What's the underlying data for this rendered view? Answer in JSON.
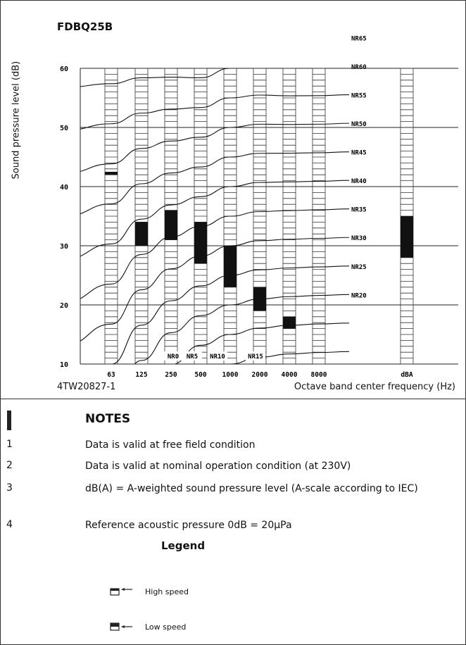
{
  "model": "FDBQ25B",
  "drawing_code": "4TW20827-1",
  "chart_data": {
    "type": "bar",
    "ylabel": "Sound pressure level (dB)",
    "xlabel": "Octave band center frequency (Hz)",
    "ylim": [
      10,
      60
    ],
    "yticks": [
      "10",
      "20",
      "30",
      "40",
      "50",
      "60"
    ],
    "categories": [
      "63",
      "125",
      "250",
      "500",
      "1000",
      "2000",
      "4000",
      "8000",
      "dBA"
    ],
    "series": [
      {
        "name": "High speed",
        "values": [
          42.5,
          34,
          36,
          34,
          30,
          23,
          18,
          null,
          35
        ]
      },
      {
        "name": "Low speed",
        "values": [
          42,
          30,
          31,
          27,
          23,
          19,
          16,
          null,
          28
        ]
      }
    ],
    "nr_curves": [
      "NR65",
      "NR60",
      "NR55",
      "NR50",
      "NR45",
      "NR40",
      "NR35",
      "NR30",
      "NR25",
      "NR20",
      "NR15",
      "NR10",
      "NR5",
      "NR0"
    ]
  },
  "notes": {
    "title": "NOTES",
    "items": [
      {
        "num": "1",
        "text": "Data is valid at free field condition"
      },
      {
        "num": "2",
        "text": "Data is valid at nominal operation condition (at 230V)"
      },
      {
        "num": "3",
        "text": "dB(A) = A-weighted sound pressure level (A-scale according to IEC)"
      },
      {
        "num": "4",
        "text": "Reference acoustic pressure 0dB = 20μPa"
      }
    ]
  },
  "legend": {
    "title": "Legend",
    "high": "High speed",
    "low": "Low speed"
  }
}
